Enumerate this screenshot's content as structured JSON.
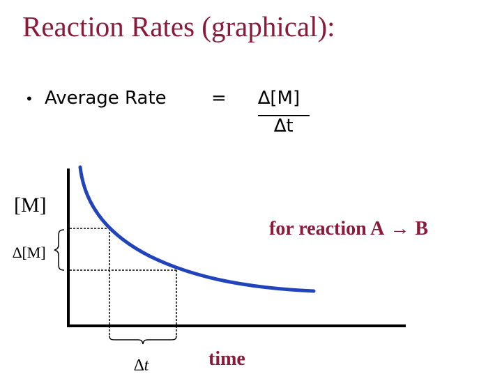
{
  "title": "Reaction Rates (graphical):",
  "bullet": {
    "marker": "•",
    "label": "Average Rate",
    "equals": "=",
    "numerator": "∆[M]",
    "denominator": "∆t"
  },
  "graph": {
    "y_axis_label": "[M]",
    "delta_y_label": "∆[M]",
    "x_axis_label": "time",
    "delta_x_label": "∆t",
    "reaction_prefix": "for reaction  A",
    "reaction_arrow": "→",
    "reaction_product": "B",
    "curve_color": "#2244bb",
    "accent_color": "#8b1a3a"
  }
}
